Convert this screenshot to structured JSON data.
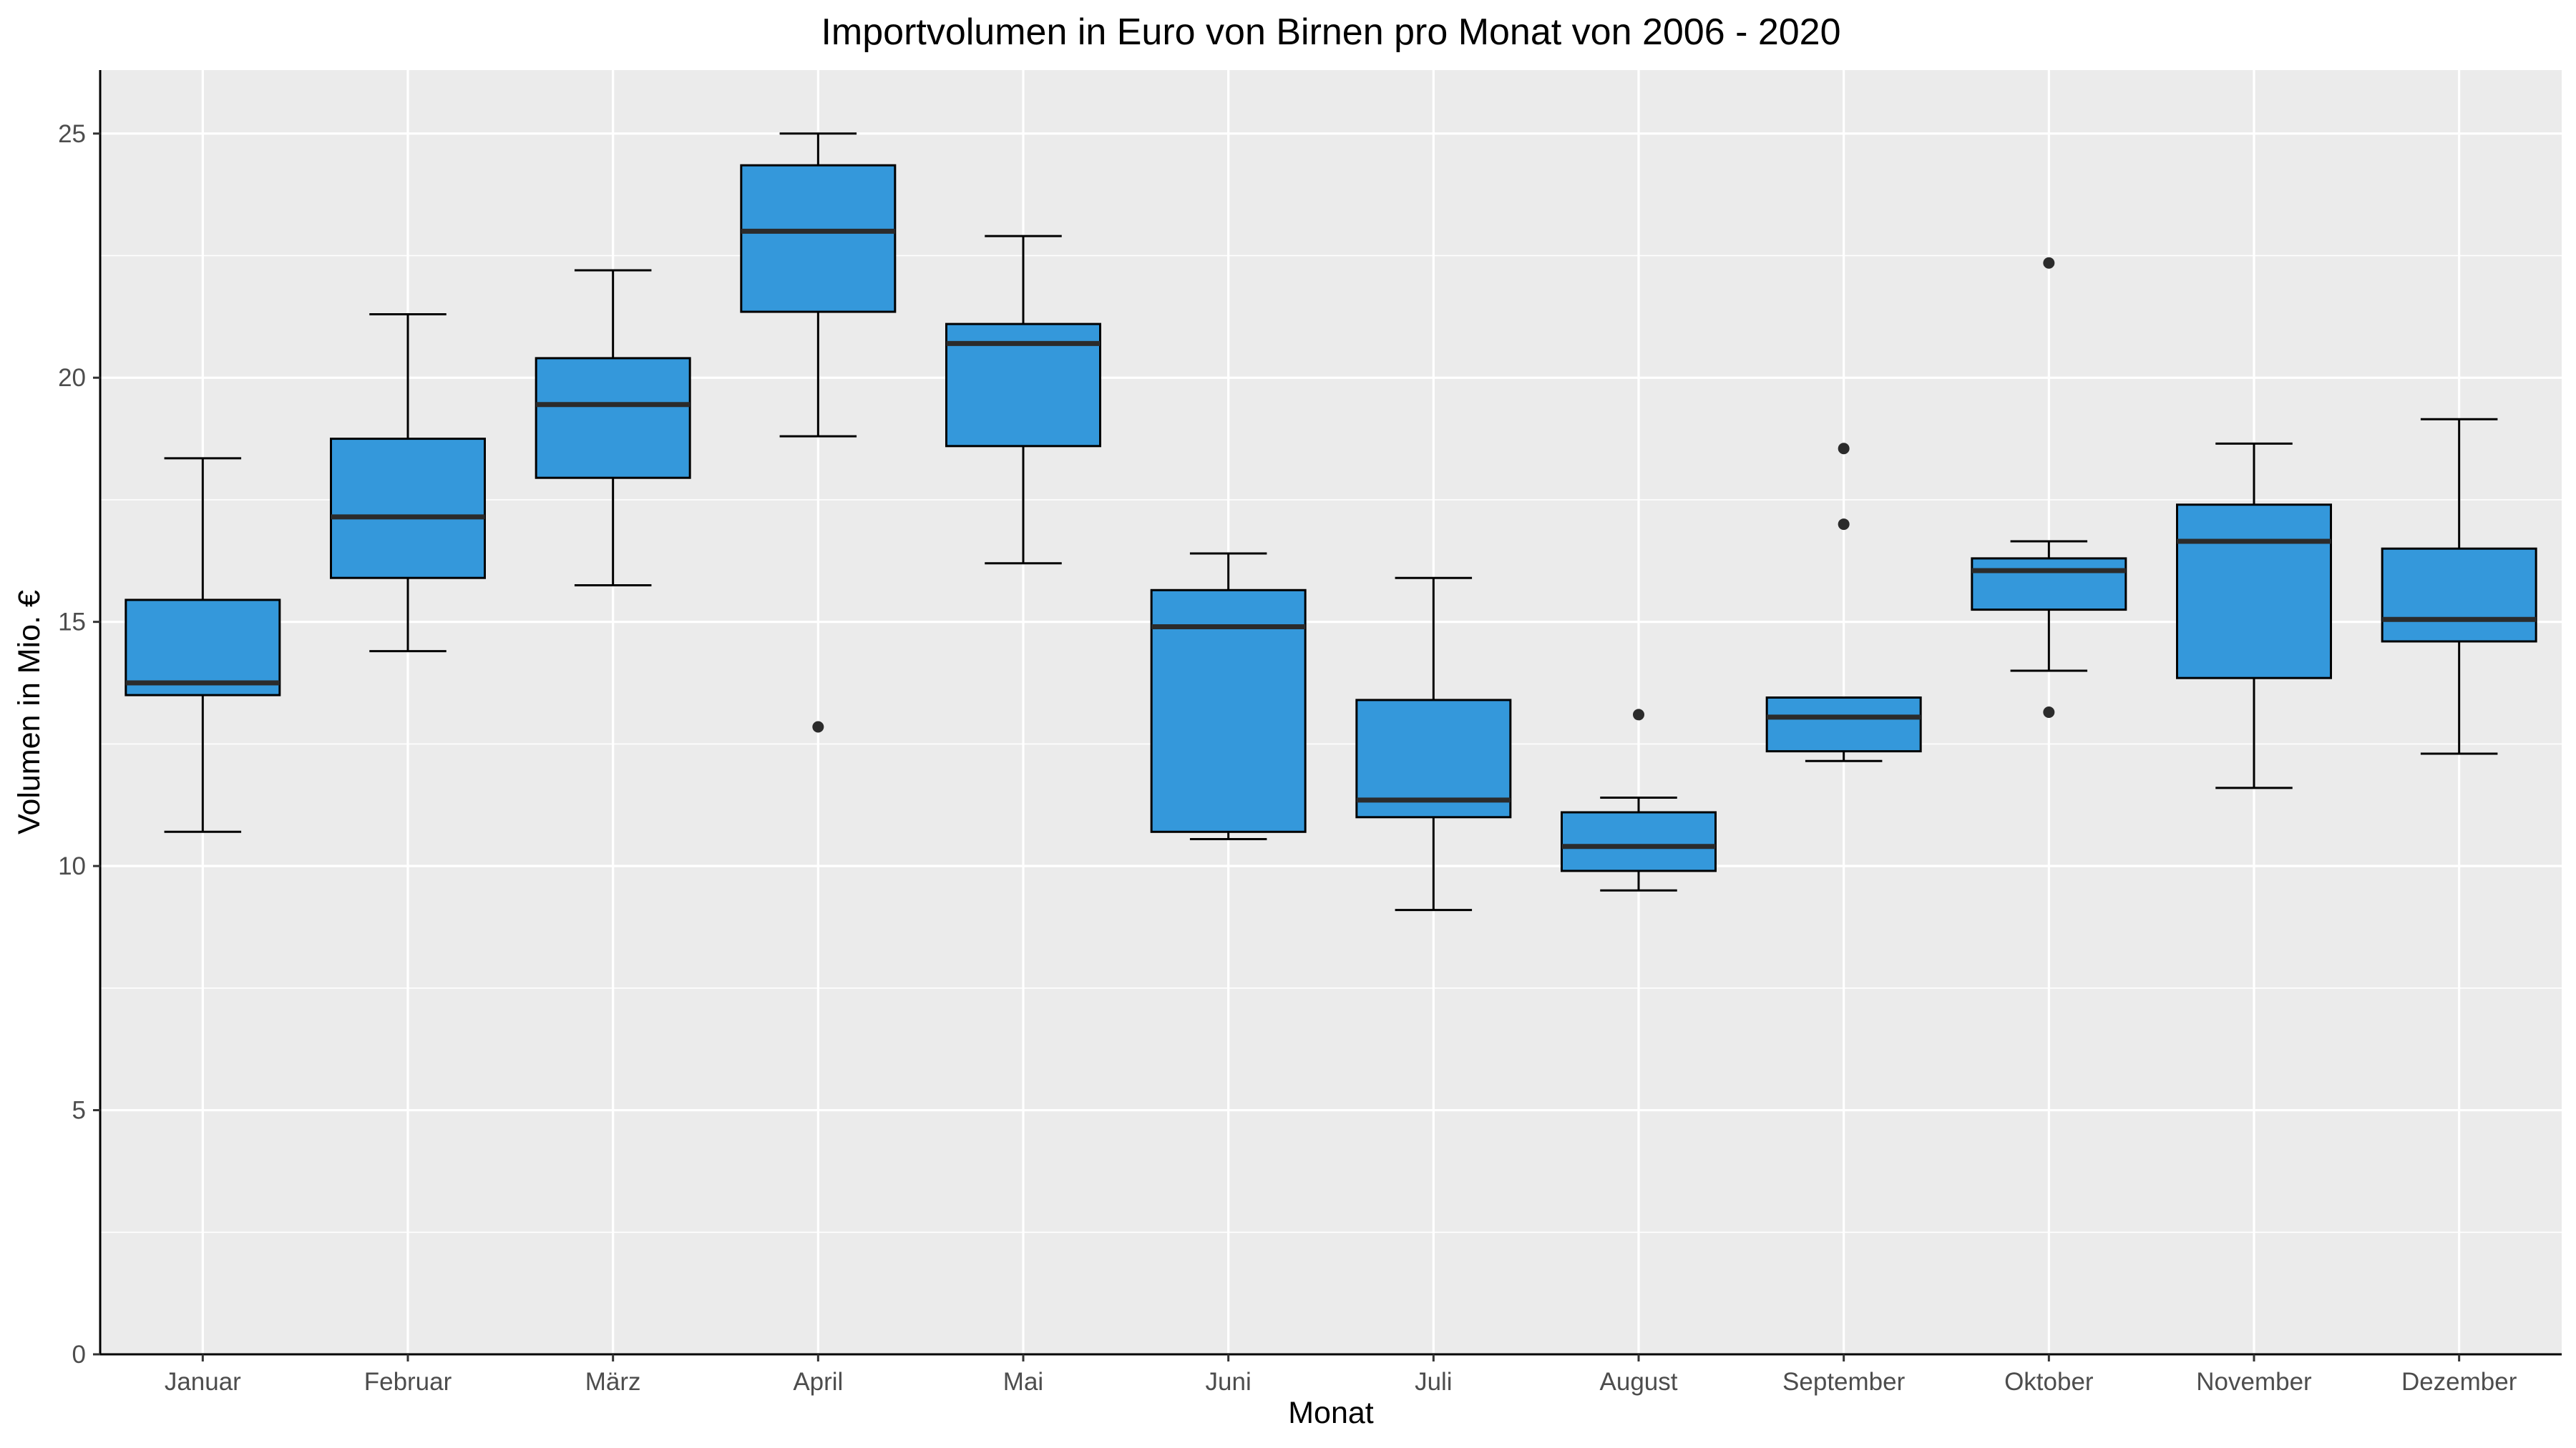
{
  "chart_data": {
    "type": "boxplot",
    "title": "Importvolumen in Euro von Birnen pro Monat von 2006 - 2020",
    "xlabel": "Monat",
    "ylabel": "Volumen in Mio. €",
    "ylim": [
      0,
      26.3
    ],
    "yticks": [
      0,
      5,
      10,
      15,
      20,
      25
    ],
    "grid": true,
    "legend": "none",
    "colors": {
      "panel": "#EBEBEB",
      "grid": "#FFFFFF",
      "box_fill": "#3498DB",
      "box_line": "#000000",
      "median_line": "#2B2B2B",
      "outlier": "#2B2B2B"
    },
    "categories": [
      "Januar",
      "Februar",
      "März",
      "April",
      "Mai",
      "Juni",
      "Juli",
      "August",
      "September",
      "Oktober",
      "November",
      "Dezember"
    ],
    "boxes": [
      {
        "lower_whisker": 10.7,
        "q1": 13.5,
        "median": 13.75,
        "q3": 15.45,
        "upper_whisker": 18.35,
        "outliers": []
      },
      {
        "lower_whisker": 14.4,
        "q1": 15.9,
        "median": 17.15,
        "q3": 18.75,
        "upper_whisker": 21.3,
        "outliers": []
      },
      {
        "lower_whisker": 15.75,
        "q1": 17.95,
        "median": 19.45,
        "q3": 20.4,
        "upper_whisker": 22.2,
        "outliers": []
      },
      {
        "lower_whisker": 18.8,
        "q1": 21.35,
        "median": 23.0,
        "q3": 24.35,
        "upper_whisker": 25.0,
        "outliers": [
          12.85
        ]
      },
      {
        "lower_whisker": 16.2,
        "q1": 18.6,
        "median": 20.7,
        "q3": 21.1,
        "upper_whisker": 22.9,
        "outliers": []
      },
      {
        "lower_whisker": 10.55,
        "q1": 10.7,
        "median": 14.9,
        "q3": 15.65,
        "upper_whisker": 16.4,
        "outliers": []
      },
      {
        "lower_whisker": 9.1,
        "q1": 11.0,
        "median": 11.35,
        "q3": 13.4,
        "upper_whisker": 15.9,
        "outliers": []
      },
      {
        "lower_whisker": 9.5,
        "q1": 9.9,
        "median": 10.4,
        "q3": 11.1,
        "upper_whisker": 11.4,
        "outliers": [
          13.1
        ]
      },
      {
        "lower_whisker": 12.15,
        "q1": 12.35,
        "median": 13.05,
        "q3": 13.45,
        "upper_whisker": 13.45,
        "outliers": [
          17.0,
          18.55
        ]
      },
      {
        "lower_whisker": 14.0,
        "q1": 15.25,
        "median": 16.05,
        "q3": 16.3,
        "upper_whisker": 16.65,
        "outliers": [
          13.15,
          22.35
        ]
      },
      {
        "lower_whisker": 11.6,
        "q1": 13.85,
        "median": 16.65,
        "q3": 17.4,
        "upper_whisker": 18.65,
        "outliers": []
      },
      {
        "lower_whisker": 12.3,
        "q1": 14.6,
        "median": 15.05,
        "q3": 16.5,
        "upper_whisker": 19.15,
        "outliers": []
      }
    ]
  }
}
